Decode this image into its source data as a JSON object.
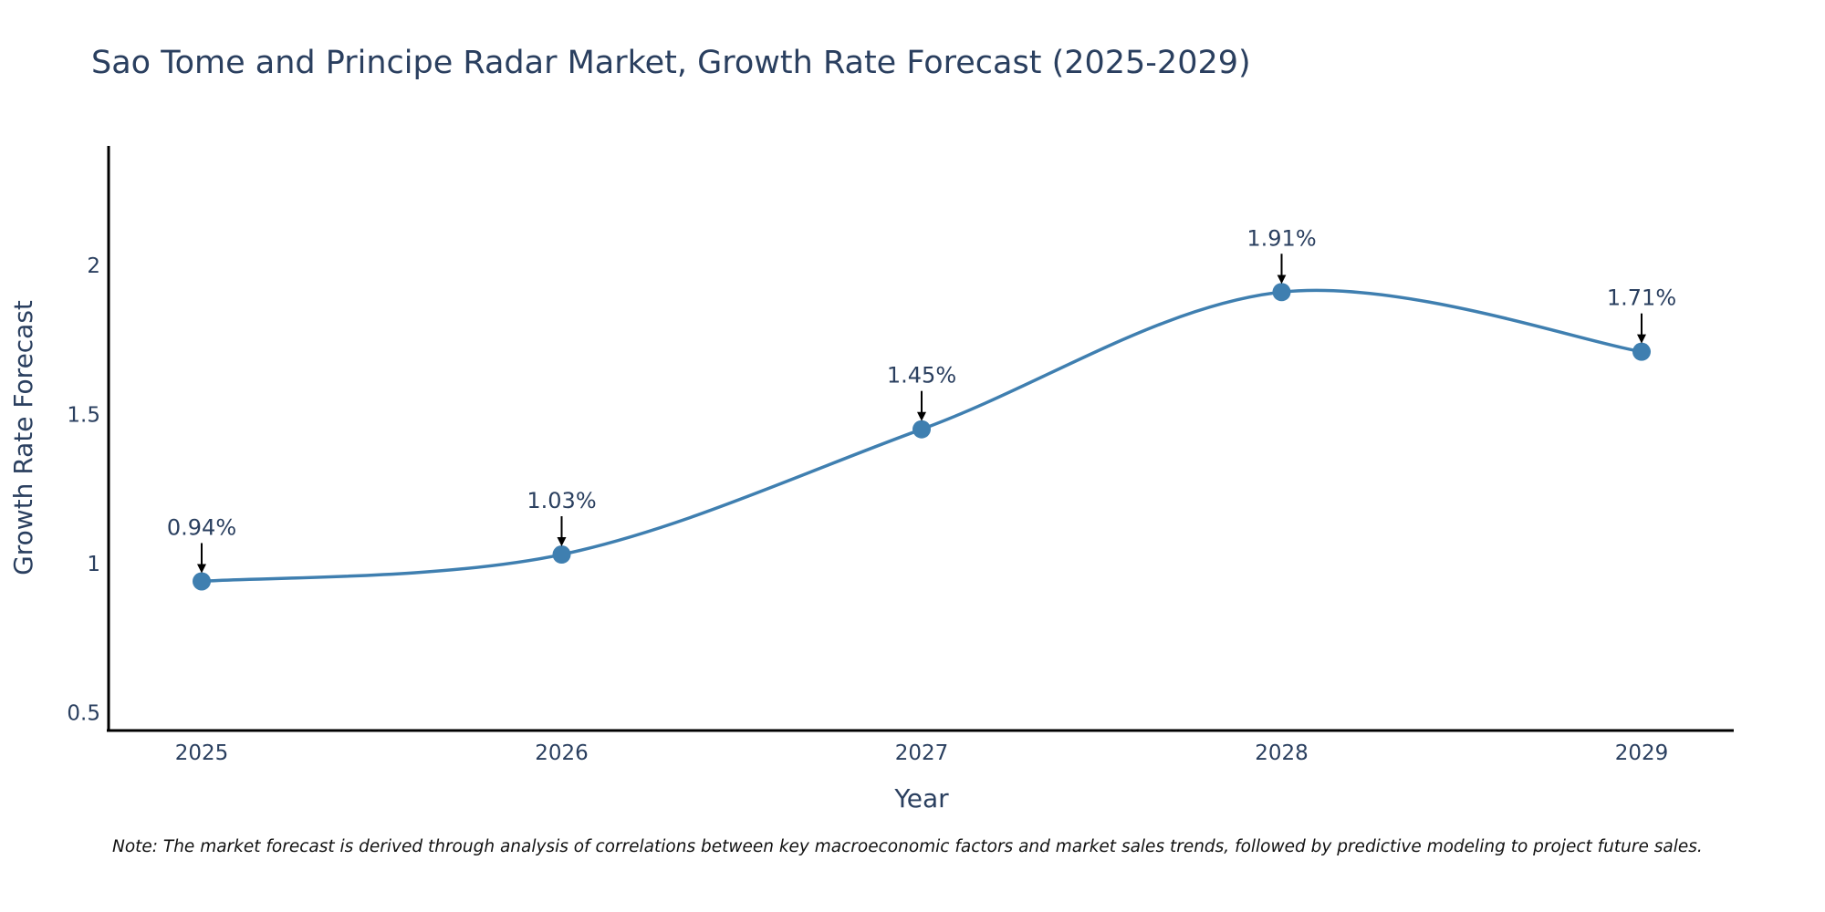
{
  "chart_data": {
    "type": "line",
    "title": "Sao Tome and Principe Radar Market, Growth Rate Forecast (2025-2029)",
    "xlabel": "Year",
    "ylabel": "Growth Rate Forecast",
    "categories": [
      "2025",
      "2026",
      "2027",
      "2028",
      "2029"
    ],
    "values": [
      0.94,
      1.03,
      1.45,
      1.91,
      1.71
    ],
    "data_labels": [
      "0.94%",
      "1.03%",
      "1.45%",
      "1.91%",
      "1.71%"
    ],
    "yticks": [
      0.5,
      1,
      1.5,
      2
    ],
    "ytick_labels": [
      "0.5",
      "1",
      "1.5",
      "2"
    ],
    "ylim": [
      0.44,
      2.4
    ],
    "grid": false,
    "line_color": "#3f7fb0",
    "marker_color": "#3f7fb0"
  },
  "note": "Note: The market forecast is derived through analysis of correlations between key macroeconomic factors and market sales trends, followed by predictive modeling to project future sales."
}
